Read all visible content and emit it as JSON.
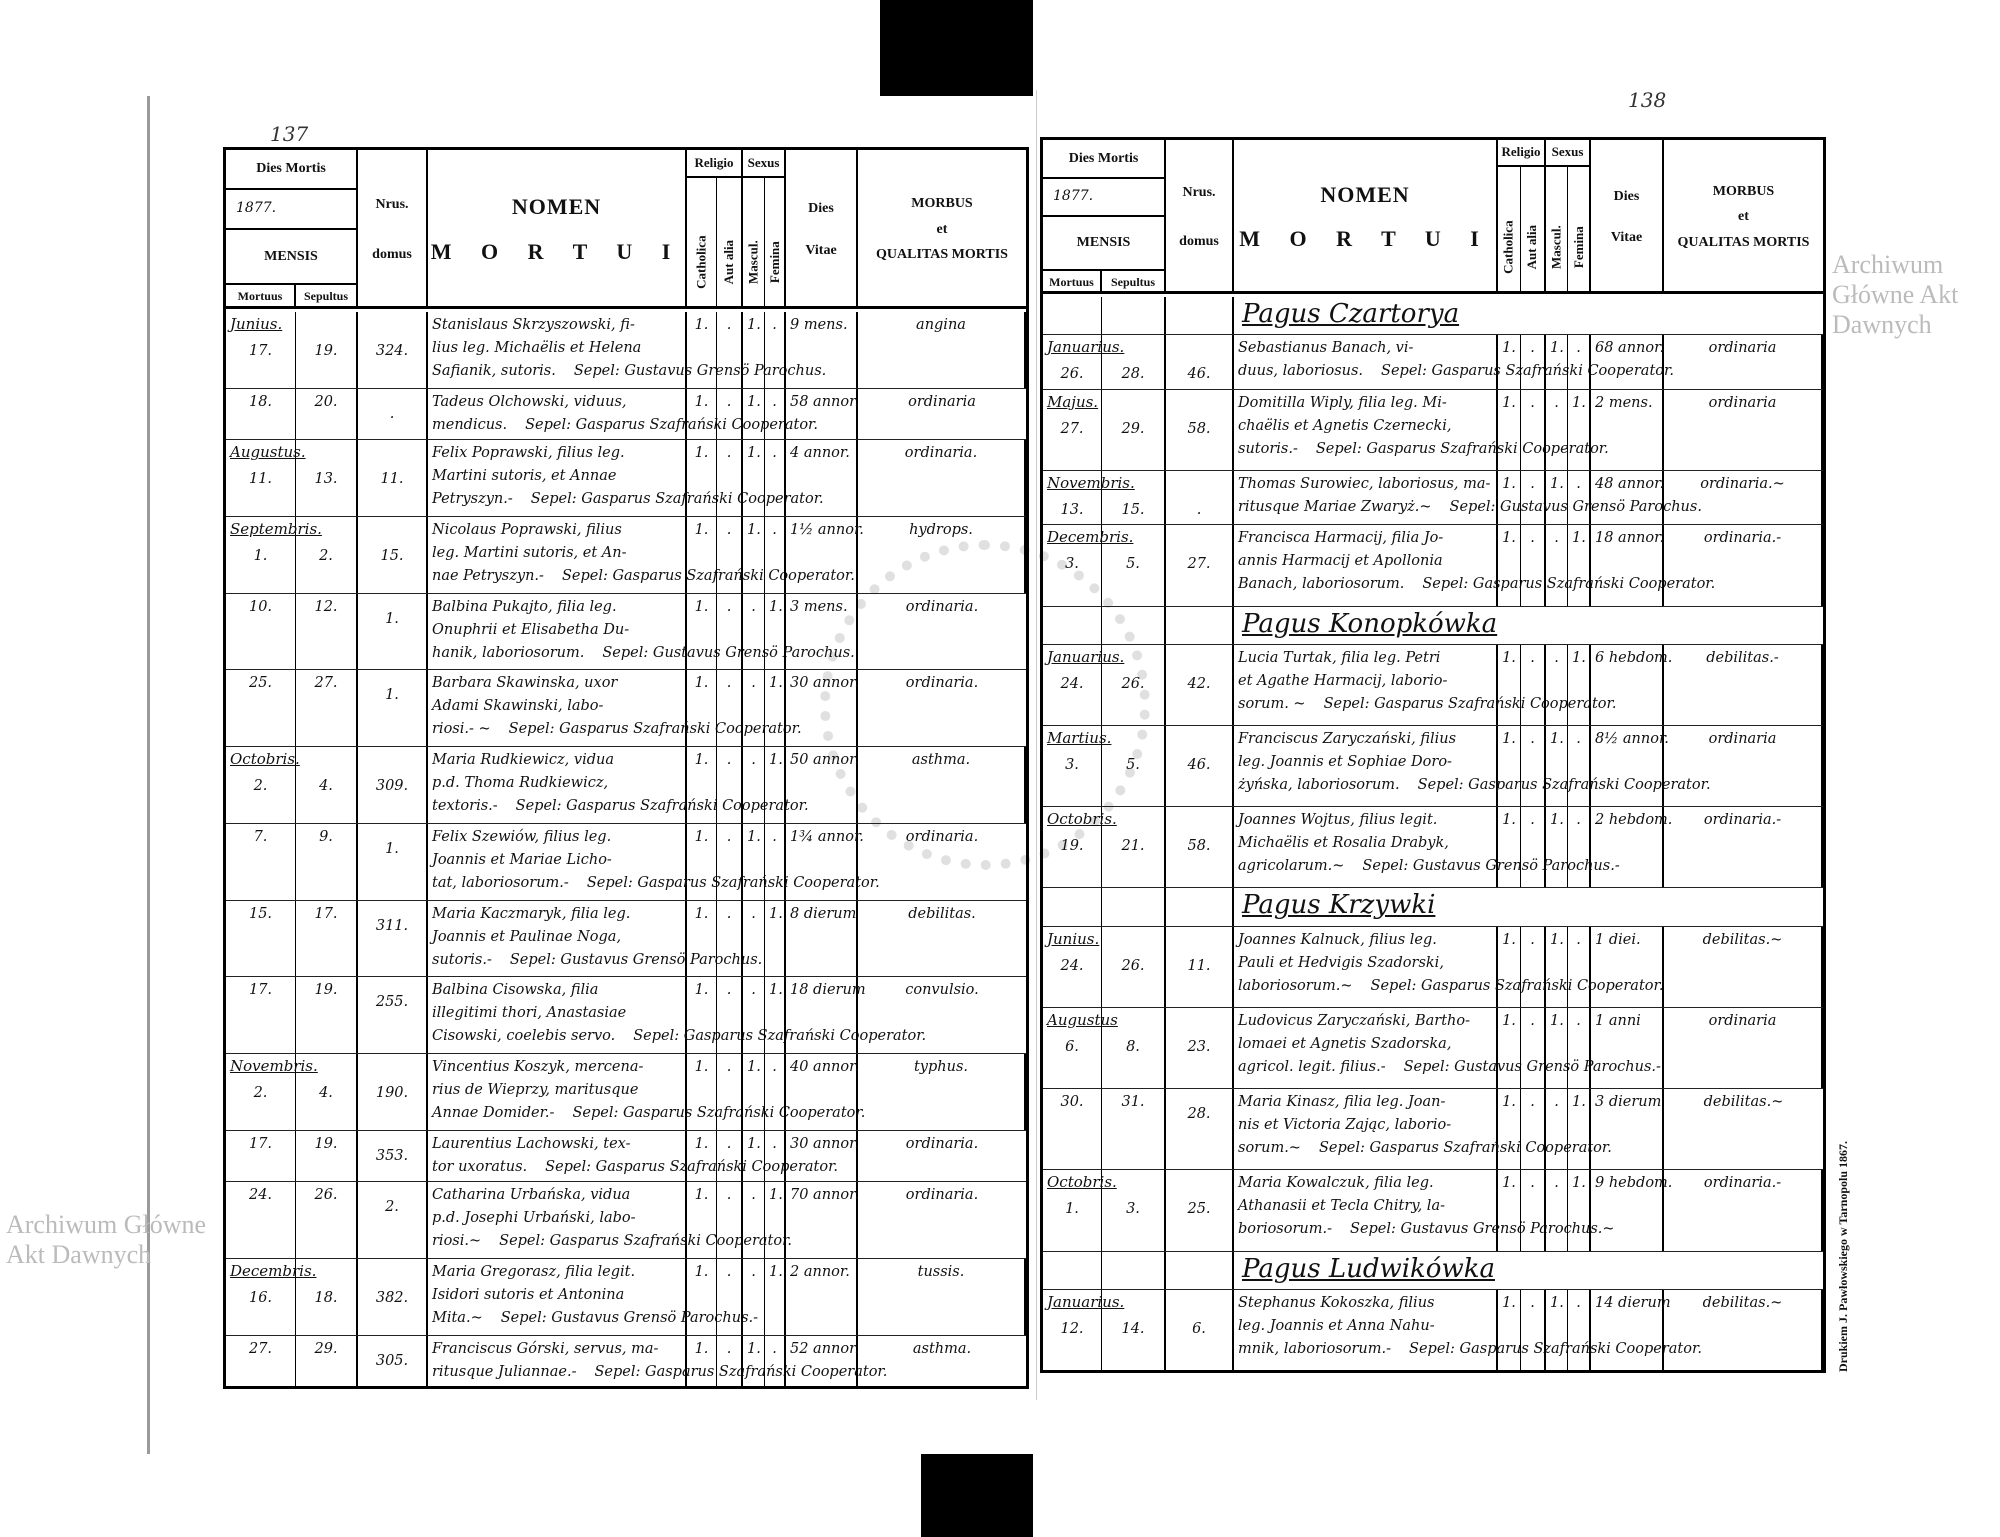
{
  "watermark": "Archiwum Główne Akt Dawnych",
  "printer": "Drukiem J. Pawłowskiego w Tarnopolu 1867.",
  "header": {
    "dies_mortis": "Dies Mortis",
    "year": "1877.",
    "mensis": "MENSIS",
    "mortuus": "Mortuus",
    "sepultus": "Sepultus",
    "nrus": "Nrus.",
    "domus": "domus",
    "nomen": "NOMEN",
    "mortui": "M O R T U I",
    "religio": "Religio",
    "catholica": "Catholica",
    "aut_alia": "Aut alia",
    "sexus": "Sexus",
    "mascul": "Mascul.",
    "femina": "Femina",
    "dies": "Dies",
    "vitae": "Vitae",
    "morbus": "MORBUS",
    "et": "et",
    "qualitas": "QUALITAS MORTIS"
  },
  "left_page": {
    "page_number": "137",
    "rows": [
      {
        "type": "entry",
        "month": "Junius.",
        "mortuus": "17.",
        "sepultus": "19.",
        "domus": "324.",
        "nomen": [
          "Stanislaus Skrzyszowski, fi-",
          "lius leg. Michaëlis et Helena",
          "Safianik, sutoris."
        ],
        "sepel": "Sepel: Gustavus Grensö Parochus.",
        "catholica": "1.",
        "aut_alia": ".",
        "mascul": "1.",
        "femina": ".",
        "vitae": "9 mens.",
        "morbus": "angina"
      },
      {
        "type": "entry",
        "mortuus": "18.",
        "sepultus": "20.",
        "domus": ".",
        "nomen": [
          "Tadeus Olchowski, viduus,",
          "mendicus."
        ],
        "sepel": "Sepel: Gasparus Szafrański Cooperator.",
        "catholica": "1.",
        "aut_alia": ".",
        "mascul": "1.",
        "femina": ".",
        "vitae": "58 annor.",
        "morbus": "ordinaria"
      },
      {
        "type": "entry",
        "month": "Augustus.",
        "mortuus": "11.",
        "sepultus": "13.",
        "domus": "11.",
        "nomen": [
          "Felix Poprawski, filius leg.",
          "Martini sutoris, et Annae",
          "Petryszyn.-"
        ],
        "sepel": "Sepel: Gasparus Szafrański Cooperator.",
        "catholica": "1.",
        "aut_alia": ".",
        "mascul": "1.",
        "femina": ".",
        "vitae": "4 annor.",
        "morbus": "ordinaria."
      },
      {
        "type": "entry",
        "month": "Septembris.",
        "mortuus": "1.",
        "sepultus": "2.",
        "domus": "15.",
        "nomen": [
          "Nicolaus Poprawski, filius",
          "leg. Martini sutoris, et An-",
          "nae Petryszyn.-"
        ],
        "sepel": "Sepel: Gasparus Szafrański Cooperator.",
        "catholica": "1.",
        "aut_alia": ".",
        "mascul": "1.",
        "femina": ".",
        "vitae": "1½ annor.",
        "morbus": "hydrops."
      },
      {
        "type": "entry",
        "mortuus": "10.",
        "sepultus": "12.",
        "domus": "1.",
        "nomen": [
          "Balbina Pukajto, filia leg.",
          "Onuphrii et Elisabetha Du-",
          "hanik, laboriosorum."
        ],
        "sepel": "Sepel: Gustavus Grensö Parochus.",
        "catholica": "1.",
        "aut_alia": ".",
        "mascul": ".",
        "femina": "1.",
        "vitae": "3 mens.",
        "morbus": "ordinaria."
      },
      {
        "type": "entry",
        "mortuus": "25.",
        "sepultus": "27.",
        "domus": "1.",
        "nomen": [
          "Barbara Skawinska, uxor",
          "Adami Skawinski, labo-",
          "riosi.- ~"
        ],
        "sepel": "Sepel: Gasparus Szafrański Cooperator.",
        "catholica": "1.",
        "aut_alia": ".",
        "mascul": ".",
        "femina": "1.",
        "vitae": "30 annor.",
        "morbus": "ordinaria."
      },
      {
        "type": "entry",
        "month": "Octobris.",
        "mortuus": "2.",
        "sepultus": "4.",
        "domus": "309.",
        "nomen": [
          "Maria Rudkiewicz, vidua",
          "p.d. Thoma Rudkiewicz,",
          "textoris.-"
        ],
        "sepel": "Sepel: Gasparus Szafrański Cooperator.",
        "catholica": "1.",
        "aut_alia": ".",
        "mascul": ".",
        "femina": "1.",
        "vitae": "50 annor.",
        "morbus": "asthma."
      },
      {
        "type": "entry",
        "mortuus": "7.",
        "sepultus": "9.",
        "domus": "1.",
        "nomen": [
          "Felix Szewiów, filius leg.",
          "Joannis et Mariae Licho-",
          "tat, laboriosorum.-"
        ],
        "sepel": "Sepel: Gasparus Szafrański Cooperator.",
        "catholica": "1.",
        "aut_alia": ".",
        "mascul": "1.",
        "femina": ".",
        "vitae": "1¾ annor.",
        "morbus": "ordinaria."
      },
      {
        "type": "entry",
        "mortuus": "15.",
        "sepultus": "17.",
        "domus": "311.",
        "nomen": [
          "Maria Kaczmaryk, filia leg.",
          "Joannis et Paulinae Noga,",
          "sutoris.-"
        ],
        "sepel": "Sepel: Gustavus Grensö Parochus.",
        "catholica": "1.",
        "aut_alia": ".",
        "mascul": ".",
        "femina": "1.",
        "vitae": "8 dierum",
        "morbus": "debilitas."
      },
      {
        "type": "entry",
        "mortuus": "17.",
        "sepultus": "19.",
        "domus": "255.",
        "nomen": [
          "Balbina Cisowska, filia",
          "illegitimi thori, Anastasiae",
          "Cisowski, coelebis servo."
        ],
        "sepel": "Sepel: Gasparus Szafrański Cooperator.",
        "catholica": "1.",
        "aut_alia": ".",
        "mascul": ".",
        "femina": "1.",
        "vitae": "18 dierum",
        "morbus": "convulsio."
      },
      {
        "type": "entry",
        "month": "Novembris.",
        "mortuus": "2.",
        "sepultus": "4.",
        "domus": "190.",
        "nomen": [
          "Vincentius Koszyk, mercena-",
          "rius de Wieprzy, maritusque",
          "Annae Domider.-"
        ],
        "sepel": "Sepel: Gasparus Szafrański Cooperator.",
        "catholica": "1.",
        "aut_alia": ".",
        "mascul": "1.",
        "femina": ".",
        "vitae": "40 annor.",
        "morbus": "typhus."
      },
      {
        "type": "entry",
        "mortuus": "17.",
        "sepultus": "19.",
        "domus": "353.",
        "nomen": [
          "Laurentius Lachowski, tex-",
          "tor uxoratus."
        ],
        "sepel": "Sepel: Gasparus Szafrański Cooperator.",
        "catholica": "1.",
        "aut_alia": ".",
        "mascul": "1.",
        "femina": ".",
        "vitae": "30 annor.",
        "morbus": "ordinaria."
      },
      {
        "type": "entry",
        "mortuus": "24.",
        "sepultus": "26.",
        "domus": "2.",
        "nomen": [
          "Catharina Urbańska, vidua",
          "p.d. Josephi Urbański, labo-",
          "riosi.~"
        ],
        "sepel": "Sepel: Gasparus Szafrański Cooperator.",
        "catholica": "1.",
        "aut_alia": ".",
        "mascul": ".",
        "femina": "1.",
        "vitae": "70 annor.",
        "morbus": "ordinaria."
      },
      {
        "type": "entry",
        "month": "Decembris.",
        "mortuus": "16.",
        "sepultus": "18.",
        "domus": "382.",
        "nomen": [
          "Maria Gregorasz, filia legit.",
          "Isidori sutoris et Antonina",
          "Mita.~"
        ],
        "sepel": "Sepel: Gustavus Grensö Parochus.-",
        "catholica": "1.",
        "aut_alia": ".",
        "mascul": ".",
        "femina": "1.",
        "vitae": "2 annor.",
        "morbus": "tussis."
      },
      {
        "type": "entry",
        "mortuus": "27.",
        "sepultus": "29.",
        "domus": "305.",
        "nomen": [
          "Franciscus Górski, servus, ma-",
          "ritusque Juliannae.-"
        ],
        "sepel": "Sepel: Gasparus Szafrański Cooperator.",
        "catholica": "1.",
        "aut_alia": ".",
        "mascul": "1.",
        "femina": ".",
        "vitae": "52 annor.",
        "morbus": "asthma."
      }
    ]
  },
  "right_page": {
    "page_number": "138",
    "rows": [
      {
        "type": "section",
        "title": "Pagus Czartorya"
      },
      {
        "type": "entry",
        "month": "Januarius.",
        "mortuus": "26.",
        "sepultus": "28.",
        "domus": "46.",
        "nomen": [
          "Sebastianus Banach, vi-",
          "duus, laboriosus."
        ],
        "sepel": "Sepel: Gasparus Szafrański Cooperator.",
        "catholica": "1.",
        "aut_alia": ".",
        "mascul": "1.",
        "femina": ".",
        "vitae": "68 annor.",
        "morbus": "ordinaria"
      },
      {
        "type": "entry",
        "month": "Majus.",
        "mortuus": "27.",
        "sepultus": "29.",
        "domus": "58.",
        "nomen": [
          "Domitilla Wiply, filia leg. Mi-",
          "chaëlis et Agnetis Czernecki,",
          "sutoris.-"
        ],
        "sepel": "Sepel: Gasparus Szafrański Cooperator.",
        "catholica": "1.",
        "aut_alia": ".",
        "mascul": ".",
        "femina": "1.",
        "vitae": "2 mens.",
        "morbus": "ordinaria"
      },
      {
        "type": "entry",
        "month": "Novembris.",
        "mortuus": "13.",
        "sepultus": "15.",
        "domus": ".",
        "nomen": [
          "Thomas Surowiec, laboriosus, ma-",
          "ritusque Mariae Zwaryż.~"
        ],
        "sepel": "Sepel: Gustavus Grensö Parochus.",
        "catholica": "1.",
        "aut_alia": ".",
        "mascul": "1.",
        "femina": ".",
        "vitae": "48 annor.",
        "morbus": "ordinaria.~"
      },
      {
        "type": "entry",
        "month": "Decembris.",
        "mortuus": "3.",
        "sepultus": "5.",
        "domus": "27.",
        "nomen": [
          "Francisca Harmacij, filia Jo-",
          "annis Harmacij et Apollonia",
          "Banach, laboriosorum."
        ],
        "sepel": "Sepel: Gasparus Szafrański Cooperator.",
        "catholica": "1.",
        "aut_alia": ".",
        "mascul": ".",
        "femina": "1.",
        "vitae": "18 annor.",
        "morbus": "ordinaria.-"
      },
      {
        "type": "section",
        "title": "Pagus Konopkówka"
      },
      {
        "type": "entry",
        "month": "Januarius.",
        "mortuus": "24.",
        "sepultus": "26.",
        "domus": "42.",
        "nomen": [
          "Lucia Turtak, filia leg. Petri",
          "et Agathe Harmacij, laborio-",
          "sorum. ~"
        ],
        "sepel": "Sepel: Gasparus Szafrański Cooperator.",
        "catholica": "1.",
        "aut_alia": ".",
        "mascul": ".",
        "femina": "1.",
        "vitae": "6 hebdom.",
        "morbus": "debilitas.-"
      },
      {
        "type": "entry",
        "month": "Martius.",
        "mortuus": "3.",
        "sepultus": "5.",
        "domus": "46.",
        "nomen": [
          "Franciscus Zaryczański, filius",
          "leg. Joannis et Sophiae Doro-",
          "żyńska, laboriosorum."
        ],
        "sepel": "Sepel: Gasparus Szafrański Cooperator.",
        "catholica": "1.",
        "aut_alia": ".",
        "mascul": "1.",
        "femina": ".",
        "vitae": "8½ annor.",
        "morbus": "ordinaria"
      },
      {
        "type": "entry",
        "month": "Octobris.",
        "mortuus": "19.",
        "sepultus": "21.",
        "domus": "58.",
        "nomen": [
          "Joannes Wojtus, filius legit.",
          "Michaëlis et Rosalia Drabyk,",
          "agricolarum.~"
        ],
        "sepel": "Sepel: Gustavus Grensö Parochus.-",
        "catholica": "1.",
        "aut_alia": ".",
        "mascul": "1.",
        "femina": ".",
        "vitae": "2 hebdom.",
        "morbus": "ordinaria.-"
      },
      {
        "type": "section",
        "title": "Pagus Krzywki"
      },
      {
        "type": "entry",
        "month": "Junius.",
        "mortuus": "24.",
        "sepultus": "26.",
        "domus": "11.",
        "nomen": [
          "Joannes Kalnuck, filius leg.",
          "Pauli et Hedvigis Szadorski,",
          "laboriosorum.~"
        ],
        "sepel": "Sepel: Gasparus Szafrański Cooperator.",
        "catholica": "1.",
        "aut_alia": ".",
        "mascul": "1.",
        "femina": ".",
        "vitae": "1 diei.",
        "morbus": "debilitas.~"
      },
      {
        "type": "entry",
        "month": "Augustus",
        "mortuus": "6.",
        "sepultus": "8.",
        "domus": "23.",
        "nomen": [
          "Ludovicus Zaryczański, Bartho-",
          "lomaei et Agnetis Szadorska,",
          "agricol. legit. filius.-"
        ],
        "sepel": "Sepel: Gustavus Grensö Parochus.-",
        "catholica": "1.",
        "aut_alia": ".",
        "mascul": "1.",
        "femina": ".",
        "vitae": "1 anni",
        "morbus": "ordinaria"
      },
      {
        "type": "entry",
        "mortuus": "30.",
        "sepultus": "31.",
        "domus": "28.",
        "nomen": [
          "Maria Kinasz, filia leg. Joan-",
          "nis et Victoria Zając, laborio-",
          "sorum.~"
        ],
        "sepel": "Sepel: Gasparus Szafrański Cooperator.",
        "catholica": "1.",
        "aut_alia": ".",
        "mascul": ".",
        "femina": "1.",
        "vitae": "3 dierum",
        "morbus": "debilitas.~"
      },
      {
        "type": "entry",
        "month": "Octobris.",
        "mortuus": "1.",
        "sepultus": "3.",
        "domus": "25.",
        "nomen": [
          "Maria Kowalczuk, filia leg.",
          "Athanasii et Tecla Chitry, la-",
          "boriosorum.-"
        ],
        "sepel": "Sepel: Gustavus Grensö Parochus.~",
        "catholica": "1.",
        "aut_alia": ".",
        "mascul": ".",
        "femina": "1.",
        "vitae": "9 hebdom.",
        "morbus": "ordinaria.-"
      },
      {
        "type": "section",
        "title": "Pagus Ludwikówka"
      },
      {
        "type": "entry",
        "month": "Januarius.",
        "mortuus": "12.",
        "sepultus": "14.",
        "domus": "6.",
        "nomen": [
          "Stephanus Kokoszka, filius",
          "leg. Joannis et Anna Nahu-",
          "mnik, laboriosorum.-"
        ],
        "sepel": "Sepel: Gasparus Szafrański Cooperator.",
        "catholica": "1.",
        "aut_alia": ".",
        "mascul": "1.",
        "femina": ".",
        "vitae": "14 dierum",
        "morbus": "debilitas.~"
      }
    ]
  }
}
